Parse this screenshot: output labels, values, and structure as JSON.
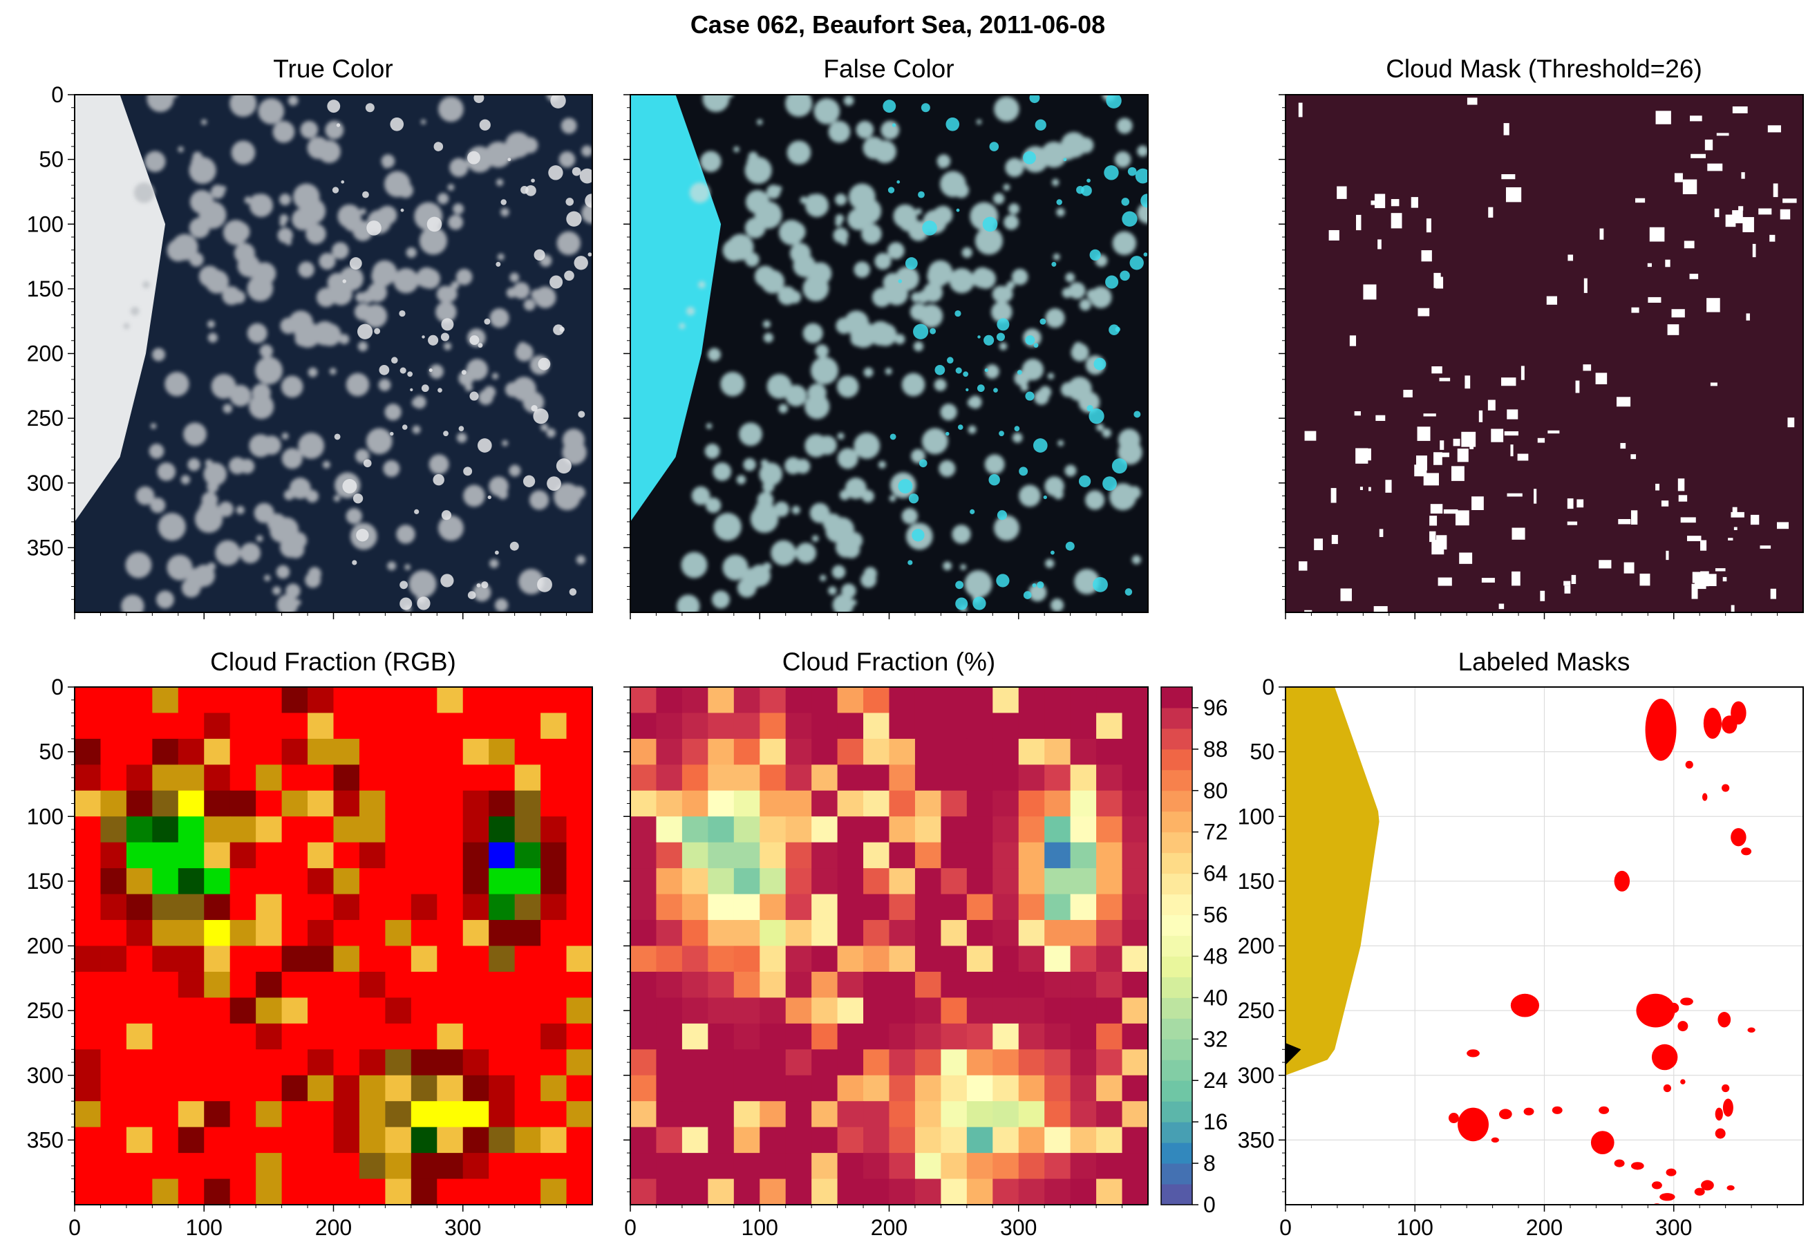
{
  "chart_data": {
    "title": "Case 062, Beaufort Sea, 2011-06-08",
    "panels": [
      {
        "id": "true_color",
        "type": "image",
        "title": "True Color",
        "xlim": [
          0,
          400
        ],
        "ylim": [
          400,
          0
        ],
        "yticks": [
          0,
          50,
          100,
          150,
          200,
          250,
          300,
          350
        ],
        "palette": {
          "ice": "#e6e8ea",
          "cloud": "#bfc3c7",
          "water": "#15233a"
        }
      },
      {
        "id": "false_color",
        "type": "image",
        "title": "False Color",
        "xlim": [
          0,
          400
        ],
        "ylim": [
          400,
          0
        ],
        "palette": {
          "ice": "#3ddcec",
          "cloud": "#b9dede",
          "water": "#0b0f17"
        }
      },
      {
        "id": "cloud_mask",
        "type": "heatmap",
        "title": "Cloud Mask (Threshold=26)",
        "xlim": [
          0,
          400
        ],
        "ylim": [
          400,
          0
        ],
        "colors": {
          "clear": "#3d1326",
          "cloud": "#ffffff"
        }
      },
      {
        "id": "cf_rgb",
        "type": "heatmap",
        "title": "Cloud Fraction (RGB)",
        "xlim": [
          0,
          400
        ],
        "ylim": [
          400,
          0
        ],
        "xticks": [
          0,
          100,
          200,
          300
        ],
        "yticks": [
          0,
          50,
          100,
          150,
          200,
          250,
          300,
          350
        ],
        "grid_cell": 20
      },
      {
        "id": "cf_percent",
        "type": "heatmap",
        "title": "Cloud Fraction (%)",
        "xlim": [
          0,
          400
        ],
        "ylim": [
          400,
          0
        ],
        "xticks": [
          0,
          100,
          200,
          300
        ],
        "grid_cell": 20,
        "colorbar": {
          "ticks": [
            0,
            8,
            16,
            24,
            32,
            40,
            48,
            56,
            64,
            72,
            80,
            88,
            96
          ],
          "range": [
            0,
            100
          ],
          "levels": 25
        }
      },
      {
        "id": "labeled_masks",
        "type": "image",
        "title": "Labeled Masks",
        "xlim": [
          0,
          400
        ],
        "ylim": [
          400,
          0
        ],
        "xticks": [
          0,
          100,
          200,
          300
        ],
        "yticks": [
          0,
          50,
          100,
          150,
          200,
          250,
          300,
          350
        ],
        "grid": true,
        "colors": {
          "coast_region": "#dab30b",
          "floe": "#ff0000",
          "land": "#000000"
        },
        "floes": [
          [
            290,
            33,
            12,
            24
          ],
          [
            330,
            28,
            7,
            12
          ],
          [
            350,
            20,
            6,
            9
          ],
          [
            343,
            29,
            6,
            7
          ],
          [
            312,
            60,
            3,
            3
          ],
          [
            340,
            78,
            3,
            3
          ],
          [
            324,
            85,
            2,
            3
          ],
          [
            350,
            116,
            6,
            7
          ],
          [
            356,
            127,
            4,
            3
          ],
          [
            260,
            150,
            6,
            8
          ],
          [
            185,
            246,
            11,
            9
          ],
          [
            286,
            250,
            15,
            13
          ],
          [
            300,
            248,
            4,
            4
          ],
          [
            310,
            243,
            5,
            3
          ],
          [
            307,
            262,
            4,
            4
          ],
          [
            339,
            257,
            5,
            6
          ],
          [
            360,
            265,
            3,
            2
          ],
          [
            293,
            286,
            10,
            10
          ],
          [
            307,
            305,
            2,
            2
          ],
          [
            145,
            283,
            5,
            3
          ],
          [
            145,
            338,
            12,
            13
          ],
          [
            170,
            330,
            5,
            4
          ],
          [
            188,
            328,
            4,
            3
          ],
          [
            210,
            327,
            4,
            3
          ],
          [
            246,
            327,
            4,
            3
          ],
          [
            295,
            310,
            3,
            3
          ],
          [
            340,
            310,
            3,
            3
          ],
          [
            342,
            325,
            4,
            7
          ],
          [
            336,
            345,
            4,
            4
          ],
          [
            245,
            352,
            9,
            9
          ],
          [
            258,
            368,
            4,
            3
          ],
          [
            272,
            370,
            5,
            3
          ],
          [
            298,
            375,
            4,
            3
          ],
          [
            295,
            394,
            6,
            3
          ],
          [
            287,
            402,
            4,
            3
          ],
          [
            287,
            385,
            4,
            3
          ],
          [
            320,
            390,
            4,
            3
          ],
          [
            326,
            385,
            5,
            4
          ],
          [
            344,
            387,
            3,
            2
          ],
          [
            130,
            333,
            4,
            4
          ],
          [
            162,
            350,
            3,
            2
          ],
          [
            335,
            330,
            3,
            5
          ]
        ]
      }
    ]
  }
}
